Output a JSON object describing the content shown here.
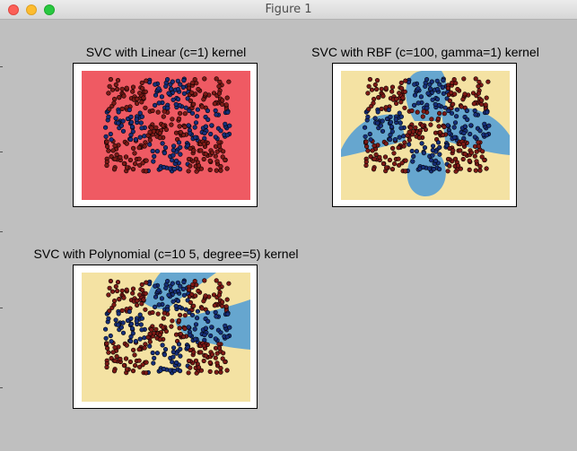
{
  "window": {
    "title": "Figure 1"
  },
  "colors": {
    "class_a_region": "#ef5a63",
    "class_b_region": "#f4e2a3",
    "blue_region": "#66a6cf",
    "class_a_point": "#7d1a16",
    "class_b_point": "#17307a",
    "point_edge": "#000000"
  },
  "chart_data": [
    {
      "type": "scatter",
      "title": "SVC with Linear (c=1) kernel",
      "xlim": [
        0,
        1
      ],
      "ylim": [
        0,
        1
      ],
      "grid": false,
      "decision_regions": {
        "class_a": "entire plot area"
      },
      "series": [
        {
          "color": "class_a_point",
          "region": "checkerboard cells (0,0),(0,2),(1,1),(2,0),(2,2)"
        },
        {
          "color": "class_b_point",
          "region": "checkerboard cells (0,1),(1,0),(1,2),(2,1)"
        }
      ]
    },
    {
      "type": "scatter",
      "title": "SVC with RBF (c=100, gamma=1) kernel",
      "xlim": [
        0,
        1
      ],
      "ylim": [
        0,
        1
      ],
      "grid": false,
      "decision_regions": {
        "background": "class_b_region",
        "blue_blobs": [
          "left",
          "top-center",
          "right",
          "bottom-center"
        ]
      },
      "series": [
        {
          "color": "class_a_point",
          "region": "checkerboard cells (0,0),(0,2),(1,1),(2,0),(2,2)"
        },
        {
          "color": "class_b_point",
          "region": "checkerboard cells (0,1),(1,0),(1,2),(2,1)"
        }
      ]
    },
    {
      "type": "scatter",
      "title": "SVC with Polynomial (c=10 5, degree=5) kernel",
      "xlim": [
        0,
        1
      ],
      "ylim": [
        0,
        1
      ],
      "grid": false,
      "decision_regions": {
        "background": "class_b_region",
        "blue_regions": [
          "top-center fan",
          "right fan"
        ]
      },
      "series": [
        {
          "color": "class_a_point",
          "region": "checkerboard cells (0,0),(0,2),(1,1),(2,0),(2,2)"
        },
        {
          "color": "class_b_point",
          "region": "checkerboard cells (0,1),(1,0),(1,2),(2,1)"
        }
      ]
    }
  ]
}
